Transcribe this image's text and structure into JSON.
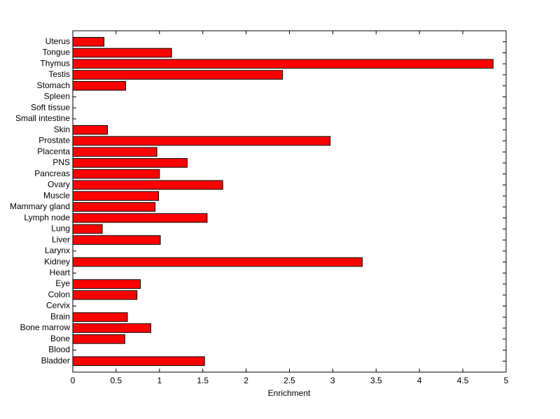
{
  "chart_data": {
    "type": "barh",
    "x_label": "Enrichment",
    "categories": [
      "Bladder",
      "Blood",
      "Bone",
      "Bone marrow",
      "Brain",
      "Cervix",
      "Colon",
      "Eye",
      "Heart",
      "Kidney",
      "Larynx",
      "Liver",
      "Lung",
      "Lymph node",
      "Mammary gland",
      "Muscle",
      "Ovary",
      "Pancreas",
      "PNS",
      "Placenta",
      "Prostate",
      "Skin",
      "Small intestine",
      "Soft tissue",
      "Spleen",
      "Stomach",
      "Testis",
      "Thymus",
      "Tongue",
      "Uterus"
    ],
    "values": [
      1.52,
      0,
      0.6,
      0.9,
      0.63,
      0,
      0.74,
      0.78,
      0,
      3.34,
      0,
      1.01,
      0.34,
      1.55,
      0.95,
      0.99,
      1.73,
      1.0,
      1.32,
      0.97,
      2.97,
      0.4,
      0,
      0,
      0,
      0.61,
      2.42,
      4.85,
      1.14,
      0.36
    ],
    "color": "#ff0000",
    "xlim": [
      0,
      5
    ],
    "xticks": [
      0,
      0.5,
      1,
      1.5,
      2,
      2.5,
      3,
      3.5,
      4,
      4.5,
      5
    ]
  }
}
